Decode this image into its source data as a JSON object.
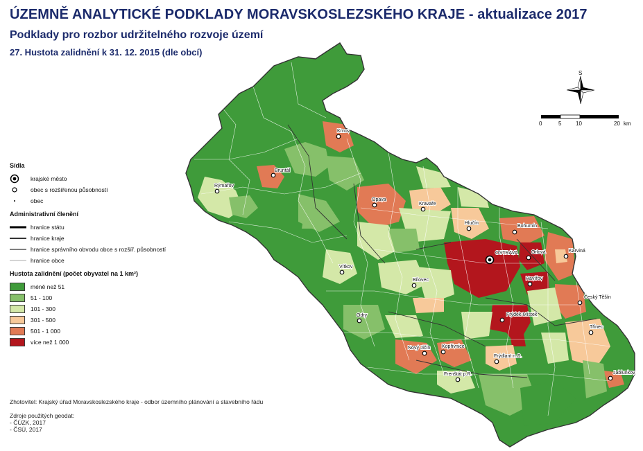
{
  "header": {
    "title": "ÚZEMNĚ ANALYTICKÉ PODKLADY MORAVSKOSLEZSKÉHO KRAJE  - aktualizace 2017",
    "subtitle": "Podklady pro rozbor udržitelného rozvoje území",
    "map_name": "27. Hustota zalidnění k 31. 12. 2015 (dle obcí)"
  },
  "legend": {
    "settlements_title": "Sídla",
    "settlements": [
      {
        "label": "krajské město",
        "icon": "regional-city-icon"
      },
      {
        "label": "obec s rozšířenou působností",
        "icon": "town-icon"
      },
      {
        "label": "obec",
        "icon": "municipality-dot-icon"
      }
    ],
    "boundaries_title": "Administrativní členění",
    "boundaries": [
      {
        "label": "hranice státu"
      },
      {
        "label": "hranice kraje"
      },
      {
        "label": "hranice správního obvodu obce s rozšíř. působností"
      },
      {
        "label": "hranice obce"
      }
    ],
    "density_title": "Hustota zalidnění (počet obyvatel na 1 km²)",
    "density_classes": [
      {
        "label": "méně než 51",
        "color": "#3f9b3a"
      },
      {
        "label": "51 - 100",
        "color": "#86c06a"
      },
      {
        "label": "101 - 300",
        "color": "#d4e8a8"
      },
      {
        "label": "301 - 500",
        "color": "#f7c99a"
      },
      {
        "label": "501 - 1 000",
        "color": "#e17a55"
      },
      {
        "label": "více než 1 000",
        "color": "#b3161d"
      }
    ]
  },
  "credits": {
    "author": "Zhotovitel: Krajský úřad Moravskoslezského kraje - odbor územního plánování a stavebního řádu",
    "sources_title": "Zdroje použitých geodat:",
    "sources": [
      "- ČÚZK, 2017",
      "- ČSÚ, 2017"
    ]
  },
  "scale_bar": {
    "ticks": [
      "0",
      "5",
      "10",
      "20"
    ],
    "unit": "km"
  },
  "north_arrow": {
    "label": "S"
  },
  "cities": [
    {
      "name": "OSTRAVA",
      "type": "regional"
    },
    {
      "name": "Krnov",
      "type": "town"
    },
    {
      "name": "Bruntál",
      "type": "town"
    },
    {
      "name": "Rýmařov",
      "type": "town"
    },
    {
      "name": "Opava",
      "type": "town"
    },
    {
      "name": "Kravaře",
      "type": "town"
    },
    {
      "name": "Hlučín",
      "type": "town"
    },
    {
      "name": "Bohumín",
      "type": "town"
    },
    {
      "name": "Orlová",
      "type": "town"
    },
    {
      "name": "Karviná",
      "type": "town"
    },
    {
      "name": "Havířov",
      "type": "town"
    },
    {
      "name": "Český Těšín",
      "type": "town"
    },
    {
      "name": "Třinec",
      "type": "town"
    },
    {
      "name": "Jablunkov",
      "type": "town"
    },
    {
      "name": "Vítkov",
      "type": "town"
    },
    {
      "name": "Bílovec",
      "type": "town"
    },
    {
      "name": "Odry",
      "type": "town"
    },
    {
      "name": "Frýdek-Místek",
      "type": "town"
    },
    {
      "name": "Nový Jičín",
      "type": "town"
    },
    {
      "name": "Kopřivnice",
      "type": "town"
    },
    {
      "name": "Frýdlant n.O.",
      "type": "town"
    },
    {
      "name": "Frenštát p.R.",
      "type": "town"
    }
  ]
}
